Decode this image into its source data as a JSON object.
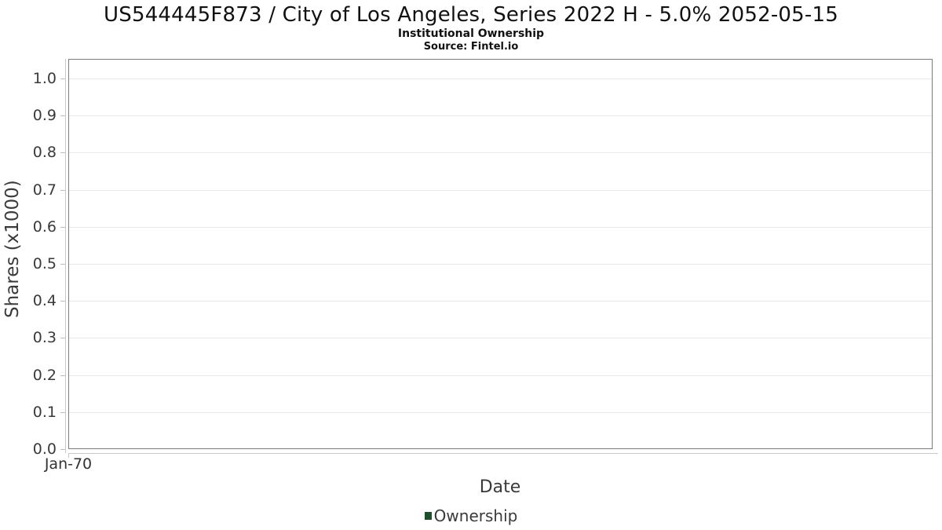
{
  "header": {
    "title": "US544445F873 / City of Los Angeles, Series 2022 H - 5.0% 2052-05-15",
    "subtitle": "Institutional Ownership",
    "source": "Source: Fintel.io"
  },
  "axes": {
    "x_label": "Date",
    "y_label": "Shares (x1000)",
    "x_tick_labels": [
      "Jan-70"
    ],
    "y_tick_labels": [
      "0.0",
      "0.1",
      "0.2",
      "0.3",
      "0.4",
      "0.5",
      "0.6",
      "0.7",
      "0.8",
      "0.9",
      "1.0"
    ]
  },
  "legend": {
    "items": [
      {
        "label": "Ownership",
        "marker_color": "#1e4e2b"
      }
    ]
  },
  "colors": {
    "background": "#ffffff",
    "plot_border": "#7c7c7c",
    "grid_line": "#e8e8e8",
    "axis_line": "#c9c9c9",
    "tick_mark": "#bdbdbd",
    "tick_text": "#3a3a3a",
    "title_text": "#111111",
    "legend_marker": "#1e4e2b"
  },
  "chart_data": {
    "type": "line",
    "title": "US544445F873 / City of Los Angeles, Series 2022 H - 5.0% 2052-05-15",
    "subtitle": "Institutional Ownership",
    "source": "Source: Fintel.io",
    "xlabel": "Date",
    "ylabel": "Shares (x1000)",
    "x_ticks": [
      "Jan-70"
    ],
    "y_ticks": [
      0.0,
      0.1,
      0.2,
      0.3,
      0.4,
      0.5,
      0.6,
      0.7,
      0.8,
      0.9,
      1.0
    ],
    "ylim": [
      0,
      1.053
    ],
    "grid": true,
    "legend_position": "bottom-center",
    "series": [
      {
        "name": "Ownership",
        "color": "#1e4e2b",
        "points": []
      }
    ]
  }
}
